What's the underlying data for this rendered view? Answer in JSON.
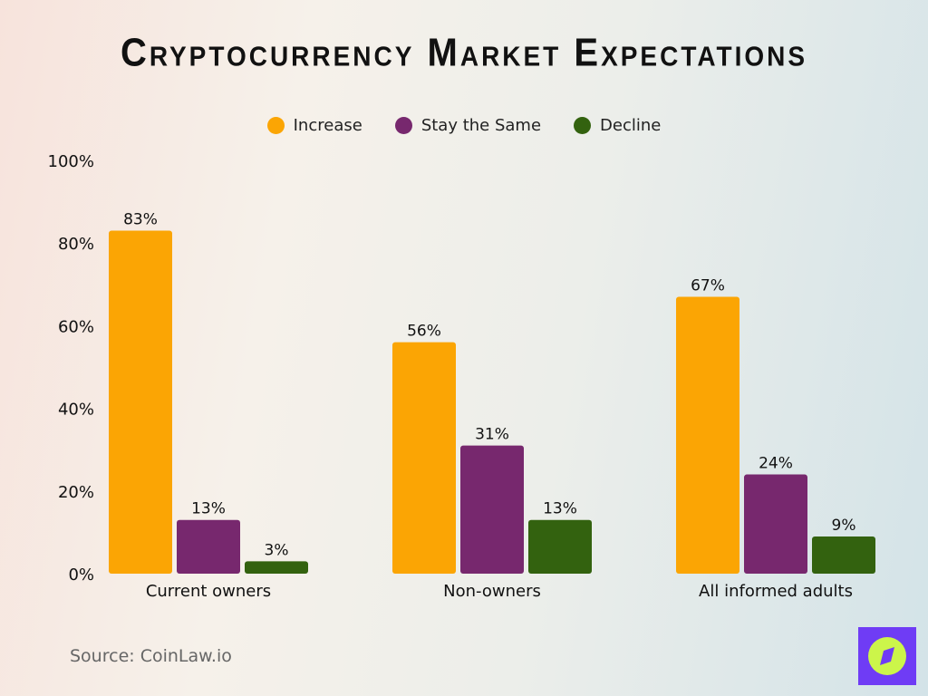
{
  "chart_data": {
    "type": "bar",
    "title": "Cryptocurrency Market Expectations",
    "categories": [
      "Current owners",
      "Non-owners",
      "All informed adults"
    ],
    "series": [
      {
        "name": "Increase",
        "values": [
          83,
          56,
          67
        ],
        "color": "#FBA504"
      },
      {
        "name": "Stay the Same",
        "values": [
          13,
          31,
          24
        ],
        "color": "#77286E"
      },
      {
        "name": "Decline",
        "values": [
          3,
          13,
          9
        ],
        "color": "#33620F"
      }
    ],
    "ylim": [
      0,
      100
    ],
    "yticks": [
      "0%",
      "20%",
      "40%",
      "60%",
      "80%",
      "100%"
    ],
    "grid": false,
    "legend": "top"
  },
  "source": "Source: CoinLaw.io",
  "logo": {
    "icon": "compass-icon",
    "bg": "#6F3CF5",
    "fg": "#CCF54A"
  }
}
